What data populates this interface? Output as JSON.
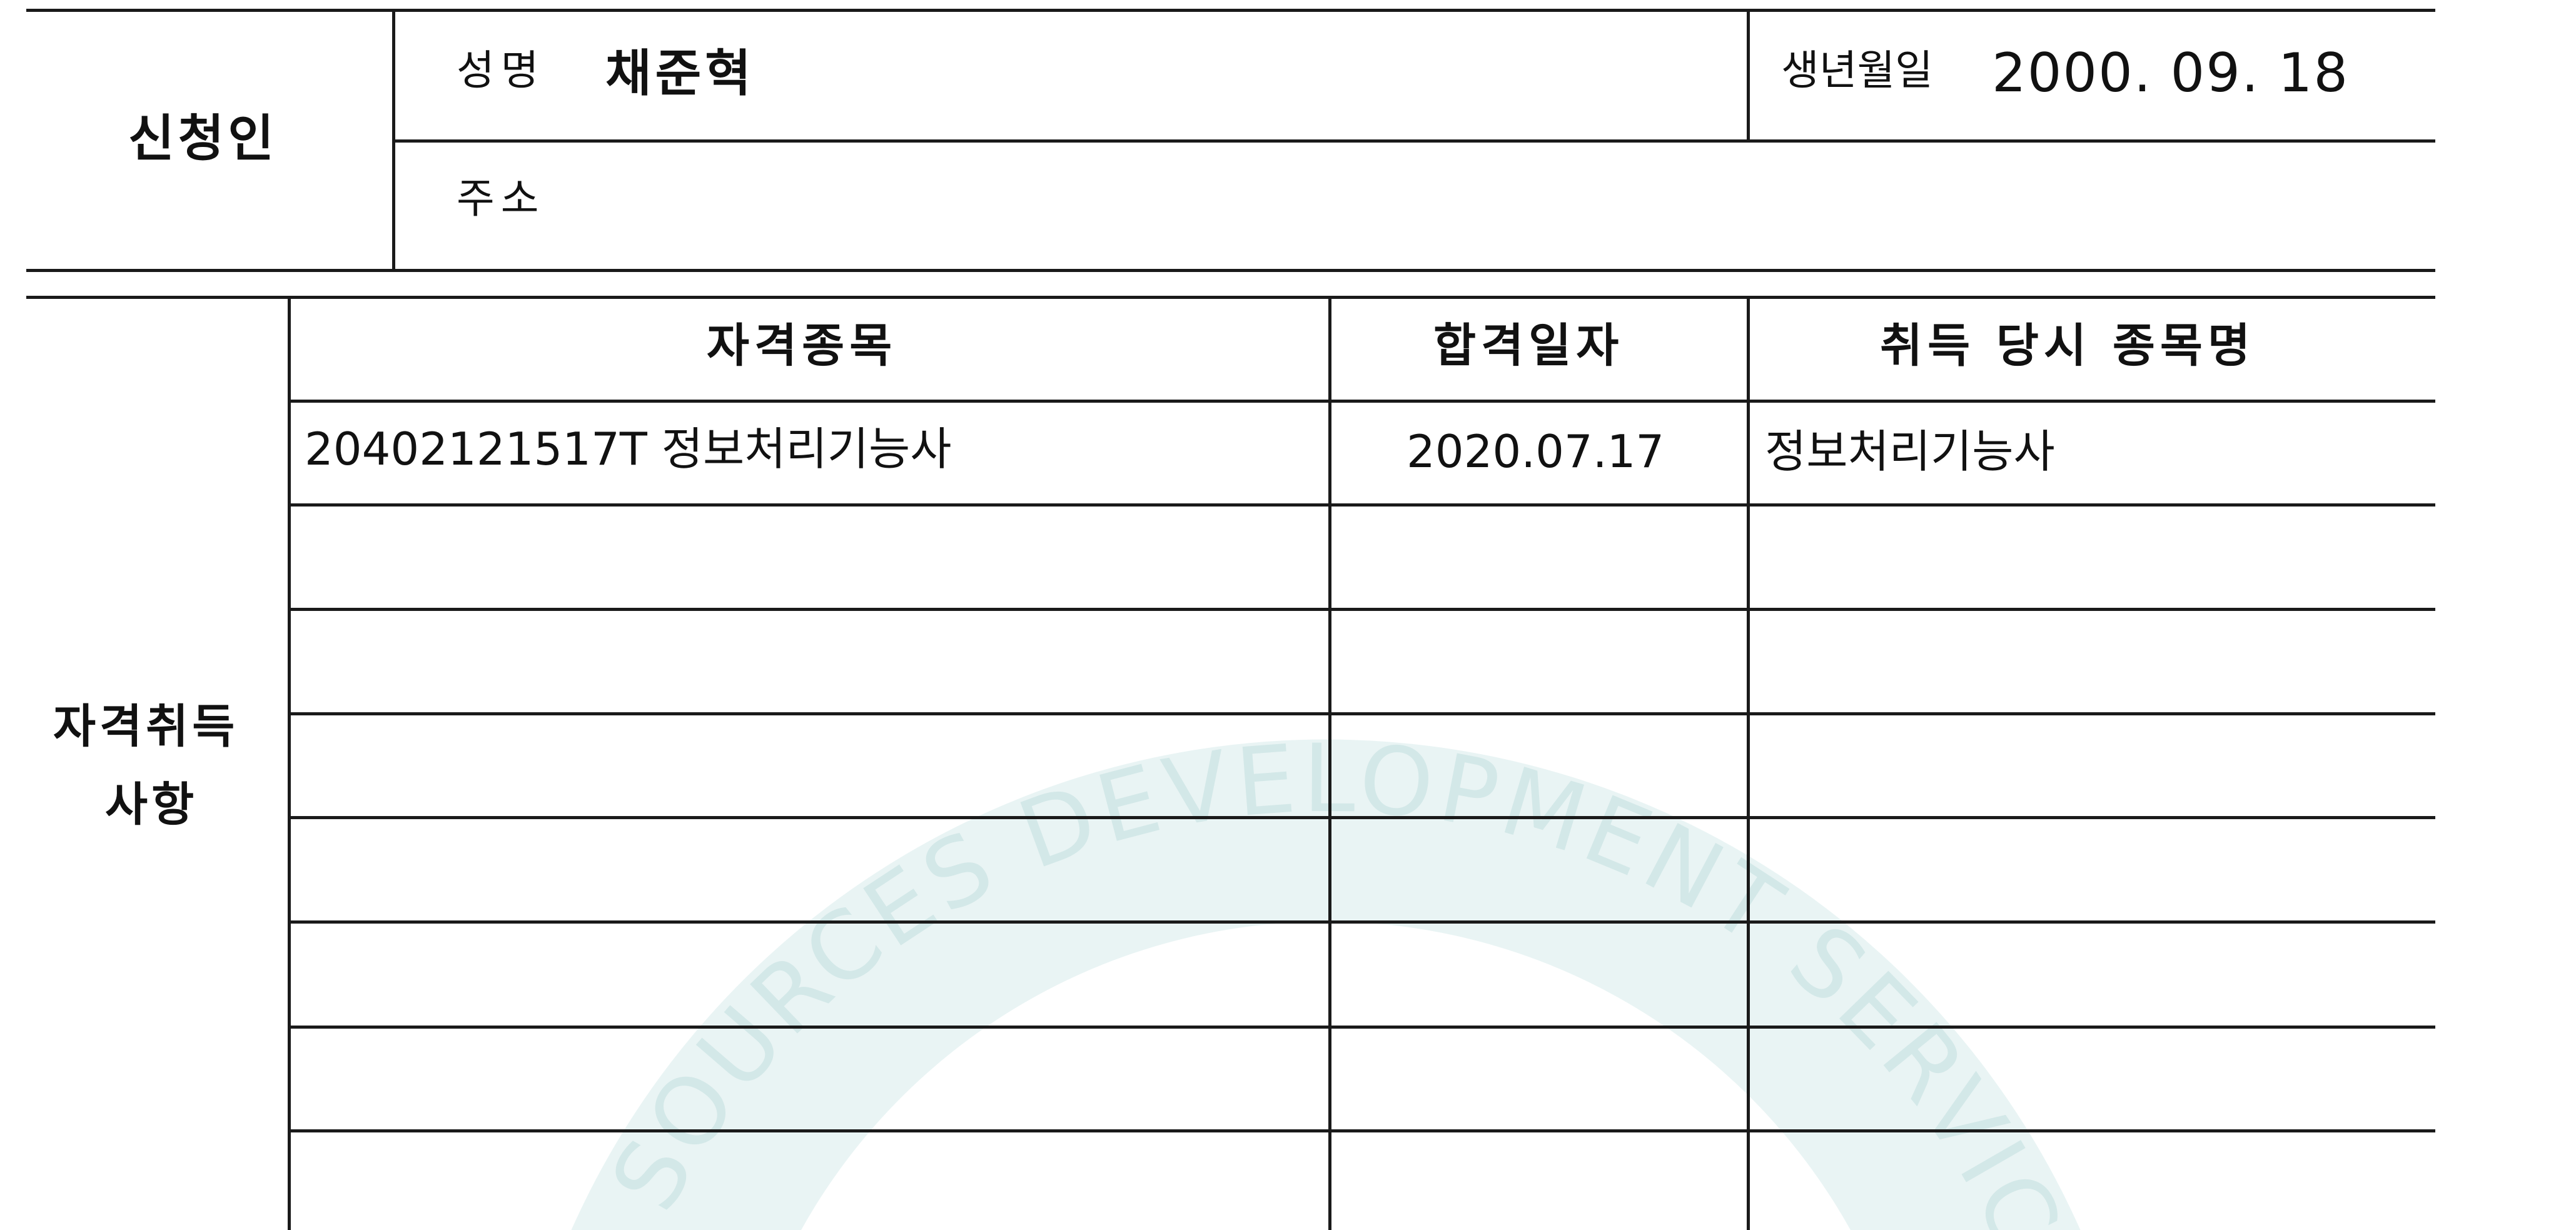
{
  "applicant": {
    "section_label": "신청인",
    "name_label": "성명",
    "name_value": "채준혁",
    "birth_label": "생년월일",
    "birth_value": "2000. 09. 18",
    "address_label": "주소",
    "address_value": ""
  },
  "qualifications": {
    "section_label_line1": "자격취득",
    "section_label_line2": "사항",
    "headers": {
      "item": "자격종목",
      "pass_date": "합격일자",
      "name_at_acquisition": "취득 당시 종목명"
    },
    "rows": [
      {
        "item": "20402121517T 정보처리기능사",
        "pass_date": "2020.07.17",
        "name_at_acquisition": "정보처리기능사"
      },
      {
        "item": "",
        "pass_date": "",
        "name_at_acquisition": ""
      },
      {
        "item": "",
        "pass_date": "",
        "name_at_acquisition": ""
      },
      {
        "item": "",
        "pass_date": "",
        "name_at_acquisition": ""
      },
      {
        "item": "",
        "pass_date": "",
        "name_at_acquisition": ""
      },
      {
        "item": "",
        "pass_date": "",
        "name_at_acquisition": ""
      },
      {
        "item": "",
        "pass_date": "",
        "name_at_acquisition": ""
      },
      {
        "item": "",
        "pass_date": "",
        "name_at_acquisition": ""
      }
    ]
  },
  "watermark": {
    "text": "SOURCES DEVELOPMENT SERVICE",
    "color": "#b7d9d9"
  }
}
